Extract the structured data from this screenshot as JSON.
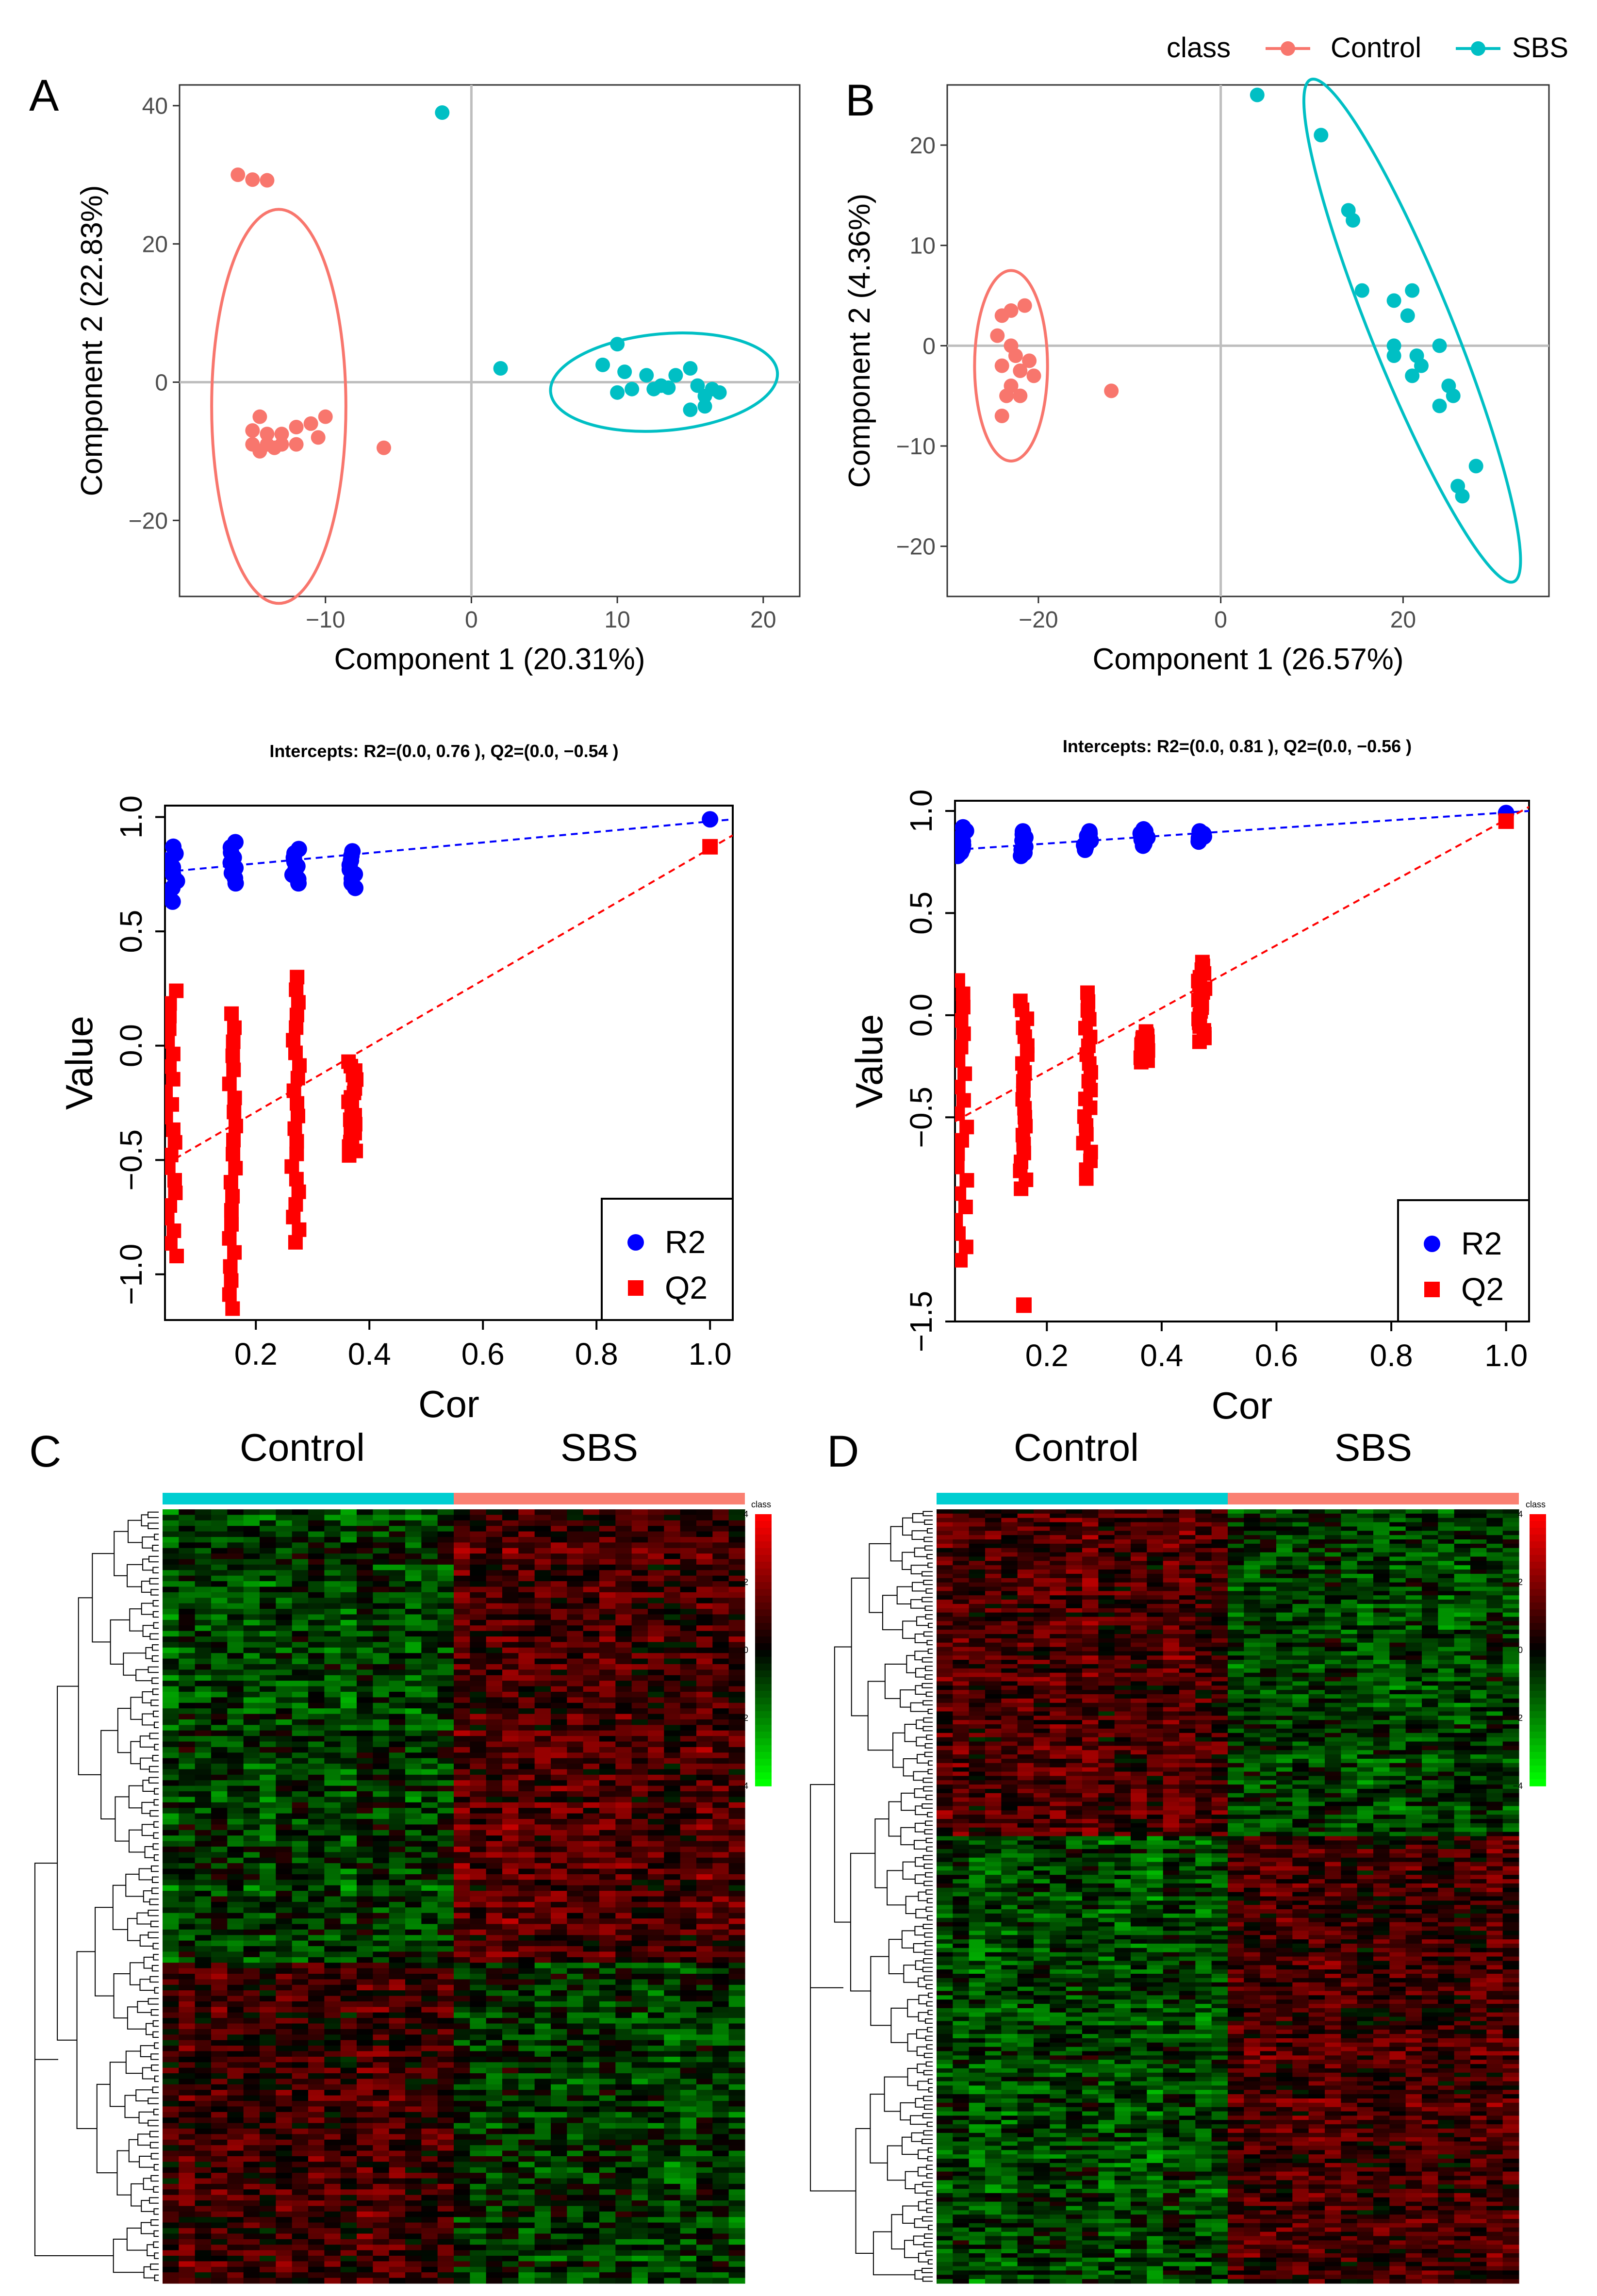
{
  "legend": {
    "title": "class",
    "entries": [
      {
        "label": "Control",
        "color": "#F8766D"
      },
      {
        "label": "SBS",
        "color": "#00BFC4"
      }
    ]
  },
  "panels": {
    "A": {
      "letter": "A"
    },
    "B": {
      "letter": "B"
    },
    "C": {
      "letter": "C"
    },
    "D": {
      "letter": "D"
    }
  },
  "chart_data": [
    {
      "id": "A",
      "type": "scatter",
      "title": "",
      "xlabel": "Component 1 (20.31%)",
      "ylabel": "Component 2 (22.83%)",
      "xlim": [
        -20,
        22.5
      ],
      "ylim": [
        -31,
        43
      ],
      "xticks": [
        -10,
        0,
        10,
        20
      ],
      "yticks": [
        -20,
        0,
        20,
        40
      ],
      "series": [
        {
          "name": "Control",
          "color": "#F8766D",
          "points": [
            [
              -16,
              30
            ],
            [
              -15,
              29.3
            ],
            [
              -14,
              29.2
            ],
            [
              -6,
              -9.5
            ],
            [
              -15,
              -7
            ],
            [
              -14.5,
              -5
            ],
            [
              -14,
              -7.5
            ],
            [
              -13,
              -7.5
            ],
            [
              -12,
              -6.5
            ],
            [
              -11,
              -6
            ],
            [
              -10,
              -5
            ],
            [
              -15,
              -9
            ],
            [
              -14.5,
              -10
            ],
            [
              -14,
              -9
            ],
            [
              -13.5,
              -9.5
            ],
            [
              -13,
              -9
            ],
            [
              -12,
              -9
            ],
            [
              -10.5,
              -8
            ]
          ],
          "ellipse": {
            "cx": -13.2,
            "cy": -3.5,
            "rx": 4.6,
            "ry": 28.5,
            "angle_deg": 0
          }
        },
        {
          "name": "SBS",
          "color": "#00BFC4",
          "points": [
            [
              -2,
              39
            ],
            [
              2,
              2
            ],
            [
              9,
              2.5
            ],
            [
              10,
              5.5
            ],
            [
              10.5,
              1.5
            ],
            [
              11,
              -1
            ],
            [
              12,
              1
            ],
            [
              12.5,
              -1
            ],
            [
              13,
              -0.5
            ],
            [
              14,
              1
            ],
            [
              15,
              2
            ],
            [
              15.5,
              -0.5
            ],
            [
              16,
              -2
            ],
            [
              17,
              -1.5
            ],
            [
              10,
              -1.5
            ],
            [
              16.5,
              -1
            ],
            [
              15,
              -4
            ],
            [
              16,
              -3.5
            ],
            [
              13.5,
              -0.8
            ]
          ],
          "ellipse": {
            "cx": 13.2,
            "cy": 0,
            "rx": 7.8,
            "ry": 7,
            "angle_deg": -5
          }
        }
      ]
    },
    {
      "id": "B",
      "type": "scatter",
      "title": "",
      "xlabel": "Component 1 (26.57%)",
      "ylabel": "Component 2 (4.36%)",
      "xlim": [
        -30,
        36
      ],
      "ylim": [
        -25,
        26
      ],
      "xticks": [
        -20,
        0,
        20
      ],
      "yticks": [
        -20,
        -10,
        0,
        10,
        20
      ],
      "series": [
        {
          "name": "Control",
          "color": "#F8766D",
          "points": [
            [
              -24,
              3
            ],
            [
              -23,
              3.5
            ],
            [
              -21.5,
              4
            ],
            [
              -24.5,
              1
            ],
            [
              -23,
              0
            ],
            [
              -22.5,
              -1
            ],
            [
              -24,
              -2
            ],
            [
              -22,
              -2.5
            ],
            [
              -20.5,
              -3
            ],
            [
              -23,
              -4
            ],
            [
              -22,
              -5
            ],
            [
              -24,
              -7
            ],
            [
              -21,
              -1.5
            ],
            [
              -23.5,
              -5
            ],
            [
              -12,
              -4.5
            ]
          ],
          "ellipse": {
            "cx": -23,
            "cy": -2,
            "rx": 4,
            "ry": 9.5,
            "angle_deg": 0
          }
        },
        {
          "name": "SBS",
          "color": "#00BFC4",
          "points": [
            [
              4,
              25
            ],
            [
              11,
              21
            ],
            [
              14,
              13.5
            ],
            [
              14.5,
              12.5
            ],
            [
              15.5,
              5.5
            ],
            [
              19,
              4.5
            ],
            [
              21,
              5.5
            ],
            [
              20.5,
              3
            ],
            [
              19,
              0
            ],
            [
              19,
              -1
            ],
            [
              21.5,
              -1
            ],
            [
              22,
              -2
            ],
            [
              21,
              -3
            ],
            [
              24,
              0
            ],
            [
              25,
              -4
            ],
            [
              25.5,
              -5
            ],
            [
              24,
              -6
            ],
            [
              26,
              -14
            ],
            [
              26.5,
              -15
            ],
            [
              28,
              -12
            ]
          ],
          "ellipse": {
            "cx": 21,
            "cy": 1.5,
            "rx": 4.5,
            "ry": 27,
            "angle_deg": -22
          }
        }
      ]
    },
    {
      "id": "A-perm",
      "type": "scatter",
      "title": "Intercepts: R2=(0.0, 0.76 ), Q2=(0.0, −0.54 )",
      "xlabel": "Cor",
      "ylabel": "Value",
      "xlim": [
        0.04,
        1.04
      ],
      "ylim": [
        -1.2,
        1.05
      ],
      "xticks": [
        0.2,
        0.4,
        0.6,
        0.8,
        1.0
      ],
      "yticks": [
        -1.0,
        -0.5,
        0.0,
        0.5,
        1.0
      ],
      "series": [
        {
          "name": "R2",
          "color": "#0000FF",
          "marker": "circle",
          "columns": [
            {
              "x": 0.05,
              "min": 0.63,
              "max": 0.87
            },
            {
              "x": 0.16,
              "min": 0.71,
              "max": 0.89
            },
            {
              "x": 0.27,
              "min": 0.71,
              "max": 0.86
            },
            {
              "x": 0.37,
              "min": 0.69,
              "max": 0.85
            }
          ],
          "points": [
            [
              1.0,
              0.99
            ]
          ],
          "intercept_line": [
            [
              0.04,
              0.76
            ],
            [
              1.04,
              0.99
            ]
          ]
        },
        {
          "name": "Q2",
          "color": "#FF0000",
          "marker": "square",
          "columns": [
            {
              "x": 0.05,
              "min": -0.92,
              "max": 0.24
            },
            {
              "x": 0.16,
              "min": -1.15,
              "max": 0.14
            },
            {
              "x": 0.27,
              "min": -0.86,
              "max": 0.3
            },
            {
              "x": 0.37,
              "min": -0.48,
              "max": -0.07
            }
          ],
          "points": [
            [
              1.0,
              0.87
            ]
          ],
          "intercept_line": [
            [
              0.04,
              -0.52
            ],
            [
              1.04,
              0.92
            ]
          ]
        }
      ]
    },
    {
      "id": "B-perm",
      "type": "scatter",
      "title": "Intercepts: R2=(0.0, 0.81 ), Q2=(0.0, −0.56 )",
      "xlabel": "Cor",
      "ylabel": "Value",
      "xlim": [
        0.04,
        1.04
      ],
      "ylim": [
        -1.5,
        1.05
      ],
      "xticks": [
        0.2,
        0.4,
        0.6,
        0.8,
        1.0
      ],
      "yticks": [
        -1.5,
        -0.5,
        0.0,
        0.5,
        1.0
      ],
      "series": [
        {
          "name": "R2",
          "color": "#0000FF",
          "marker": "circle",
          "columns": [
            {
              "x": 0.05,
              "min": 0.78,
              "max": 0.92
            },
            {
              "x": 0.16,
              "min": 0.78,
              "max": 0.9
            },
            {
              "x": 0.27,
              "min": 0.81,
              "max": 0.9
            },
            {
              "x": 0.37,
              "min": 0.83,
              "max": 0.91
            },
            {
              "x": 0.47,
              "min": 0.85,
              "max": 0.9
            }
          ],
          "points": [
            [
              1.0,
              0.99
            ]
          ],
          "intercept_line": [
            [
              0.04,
              0.81
            ],
            [
              1.04,
              1.0
            ]
          ]
        },
        {
          "name": "Q2",
          "color": "#FF0000",
          "marker": "square",
          "columns": [
            {
              "x": 0.05,
              "min": -1.2,
              "max": 0.17
            },
            {
              "x": 0.16,
              "min": -0.85,
              "max": 0.07
            },
            {
              "x": 0.27,
              "min": -0.8,
              "max": 0.11
            },
            {
              "x": 0.37,
              "min": -0.23,
              "max": -0.08
            },
            {
              "x": 0.47,
              "min": -0.13,
              "max": 0.26
            }
          ],
          "points": [
            [
              0.16,
              -1.42
            ],
            [
              1.0,
              0.95
            ]
          ],
          "intercept_line": [
            [
              0.04,
              -0.52
            ],
            [
              1.04,
              1.02
            ]
          ]
        }
      ]
    },
    {
      "id": "C",
      "type": "heatmap",
      "groups": [
        "Control",
        "SBS"
      ],
      "group_colors": [
        "#00CED1",
        "#FA8072"
      ],
      "color_key_label": "class",
      "color_scale": {
        "min": -4,
        "max": 4,
        "ticks": [
          4,
          2,
          0,
          -2,
          -4
        ],
        "low": "#00FF00",
        "mid": "#000000",
        "high": "#FF0000"
      },
      "n_rows": 140,
      "n_cols": 36
    },
    {
      "id": "D",
      "type": "heatmap",
      "groups": [
        "Control",
        "SBS"
      ],
      "group_colors": [
        "#00CED1",
        "#FA8072"
      ],
      "color_key_label": "class",
      "color_scale": {
        "min": -4,
        "max": 4,
        "ticks": [
          4,
          2,
          0,
          -2,
          -4
        ],
        "low": "#00FF00",
        "mid": "#000000",
        "high": "#FF0000"
      },
      "n_rows": 180,
      "n_cols": 36
    }
  ]
}
